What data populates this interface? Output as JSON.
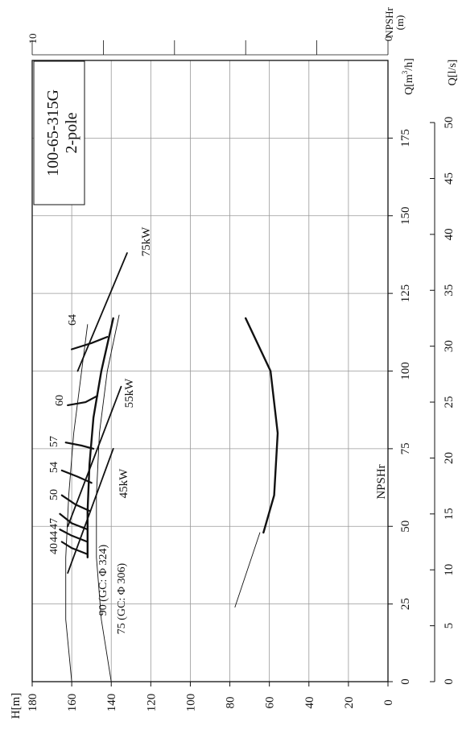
{
  "chart_data": {
    "type": "line",
    "orientation": "rotated-90-ccw",
    "model": "100-65-315G",
    "poles": "2-pole",
    "x_axis": {
      "label_main": "Q[m³/h]",
      "label_main_base": "Q[m",
      "label_main_sup": "3",
      "label_main_end": "/h]",
      "range": [
        0,
        200
      ],
      "ticks": [
        0,
        25,
        50,
        75,
        100,
        125,
        150,
        175
      ],
      "tick_labels": [
        "0",
        "25",
        "50",
        "75",
        "100",
        "125",
        "150",
        "175"
      ]
    },
    "x2_axis": {
      "label": "Q[l/s]",
      "ticks": [
        0,
        5,
        10,
        15,
        20,
        25,
        30,
        35,
        40,
        45,
        50
      ],
      "tick_labels": [
        "0",
        "5",
        "10",
        "15",
        "20",
        "25",
        "30",
        "35",
        "40",
        "45",
        "50"
      ]
    },
    "y_axis": {
      "label": "H[m]",
      "range": [
        0,
        180
      ],
      "ticks": [
        0,
        20,
        40,
        60,
        80,
        100,
        120,
        140,
        160,
        180
      ],
      "tick_labels": [
        "0",
        "20",
        "40",
        "60",
        "80",
        "100",
        "120",
        "140",
        "160",
        "180"
      ]
    },
    "npshr_axis": {
      "label_line1": "NPSHr",
      "label_line2": "(m)",
      "range": [
        0,
        10
      ],
      "ticks": [
        0,
        10
      ],
      "tick_labels": [
        "0",
        "10"
      ]
    },
    "grid": true,
    "series": [
      {
        "name": "90 (GC: Φ 324)",
        "kind": "head",
        "x": [
          0,
          20,
          40,
          60,
          80,
          100,
          115
        ],
        "y": [
          160,
          163,
          163,
          161.5,
          159,
          155,
          152
        ]
      },
      {
        "name": "",
        "kind": "head",
        "x": [
          40,
          55,
          70,
          85,
          100,
          117
        ],
        "y": [
          152,
          152,
          151,
          149,
          145,
          139
        ]
      },
      {
        "name": "75 (GC: Φ 306)",
        "kind": "head",
        "x": [
          0,
          20,
          40,
          60,
          80,
          100,
          118
        ],
        "y": [
          140,
          145,
          147.5,
          147.5,
          146,
          142,
          136
        ]
      },
      {
        "name": "NPSHr",
        "kind": "npshr",
        "x": [
          48,
          60,
          80,
          100,
          117
        ],
        "y": [
          3.5,
          3.2,
          3.1,
          3.3,
          4.0
        ]
      },
      {
        "name": "",
        "kind": "npshr-thin",
        "x": [
          24,
          48
        ],
        "y": [
          4.3,
          3.6
        ]
      }
    ],
    "efficiency_contours": [
      {
        "label": "40",
        "x": [
          45,
          43,
          41
        ],
        "y": [
          165,
          160,
          152
        ]
      },
      {
        "label": "44",
        "x": [
          49,
          47,
          45
        ],
        "y": [
          166,
          160,
          152
        ]
      },
      {
        "label": "47",
        "x": [
          54,
          51,
          49
        ],
        "y": [
          166,
          160,
          152
        ]
      },
      {
        "label": "50",
        "x": [
          60,
          57,
          55
        ],
        "y": [
          165,
          158,
          151
        ]
      },
      {
        "label": "54",
        "x": [
          68,
          66,
          64
        ],
        "y": [
          165,
          157,
          150
        ]
      },
      {
        "label": "57",
        "x": [
          77,
          76,
          75
        ],
        "y": [
          163,
          155,
          149
        ]
      },
      {
        "label": "60",
        "x": [
          89,
          90,
          92
        ],
        "y": [
          162,
          153,
          147
        ]
      },
      {
        "label": "64",
        "x": [
          107,
          109,
          111
        ],
        "y": [
          160,
          150,
          142
        ]
      }
    ],
    "power_lines": [
      {
        "label": "45kW",
        "x": [
          35,
          75
        ],
        "y": [
          162,
          139
        ]
      },
      {
        "label": "55kW",
        "x": [
          50,
          95
        ],
        "y": [
          162,
          135
        ]
      },
      {
        "label": "75kW",
        "x": [
          100,
          138
        ],
        "y": [
          157,
          132
        ]
      }
    ],
    "annotations": []
  }
}
